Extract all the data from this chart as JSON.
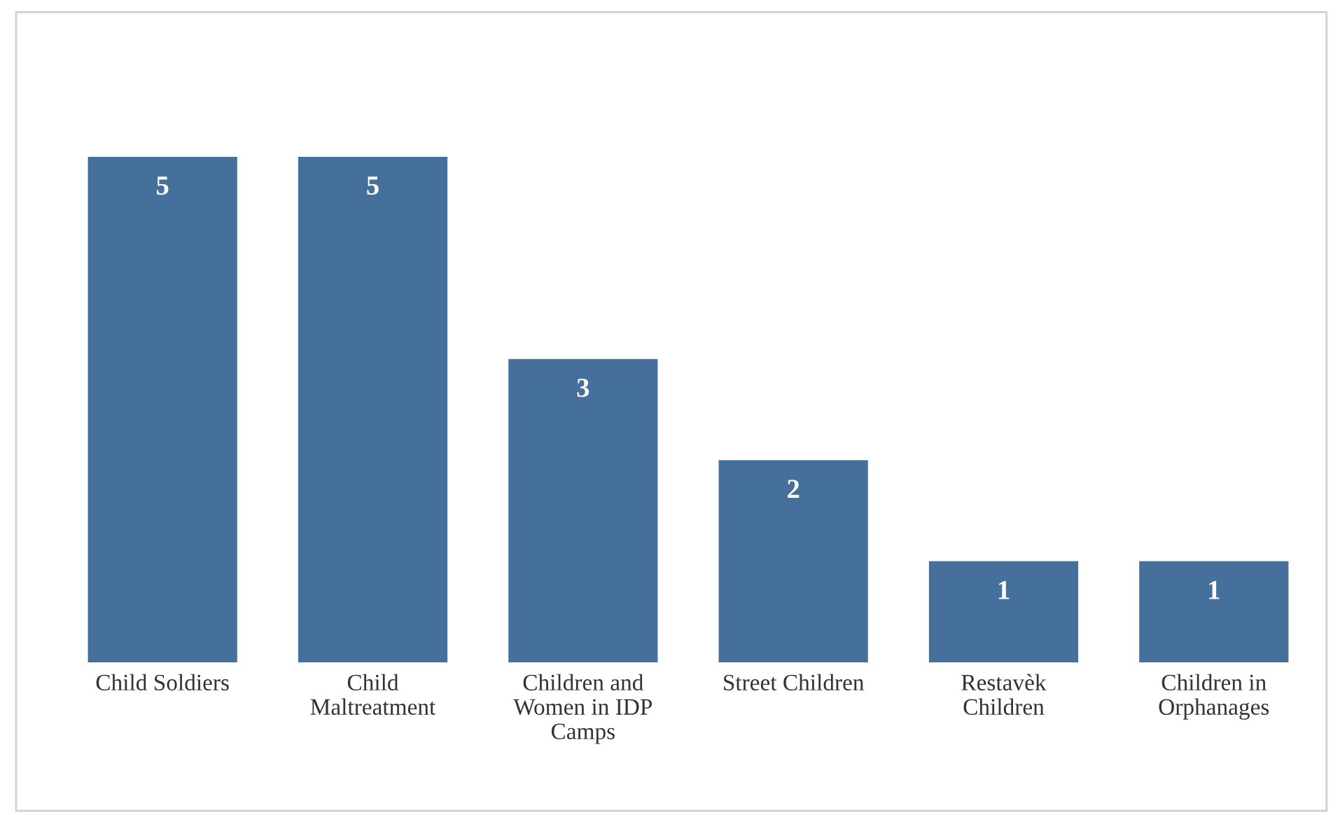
{
  "chart_data": {
    "type": "bar",
    "categories": [
      "Child Soldiers",
      "Child\nMaltreatment",
      "Children and\nWomen in IDP\nCamps",
      "Street Children",
      "Restavèk\nChildren",
      "Children in\nOrphanages"
    ],
    "values": [
      5,
      5,
      3,
      2,
      1,
      1
    ],
    "color": "#45709b",
    "data_labels": true
  }
}
